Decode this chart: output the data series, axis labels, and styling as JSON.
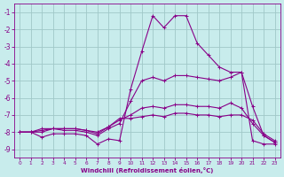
{
  "xlabel": "Windchill (Refroidissement éolien,°C)",
  "xlim": [
    -0.5,
    23.5
  ],
  "ylim": [
    -9.5,
    -0.5
  ],
  "yticks": [
    -9,
    -8,
    -7,
    -6,
    -5,
    -4,
    -3,
    -2,
    -1
  ],
  "xticks": [
    0,
    1,
    2,
    3,
    4,
    5,
    6,
    7,
    8,
    9,
    10,
    11,
    12,
    13,
    14,
    15,
    16,
    17,
    18,
    19,
    20,
    21,
    22,
    23
  ],
  "bg_color": "#c8ecec",
  "grid_color": "#a0c8c8",
  "line_color": "#880088",
  "lines": [
    [
      -8.0,
      -8.0,
      -8.3,
      -8.1,
      -8.1,
      -8.1,
      -8.2,
      -8.7,
      -8.4,
      -8.5,
      -5.5,
      -3.3,
      -1.2,
      -1.9,
      -1.2,
      -1.2,
      -2.8,
      -3.5,
      -4.2,
      -4.5,
      -4.5,
      -8.5,
      -8.7,
      -8.7
    ],
    [
      -8.0,
      -8.0,
      -8.0,
      -7.8,
      -7.9,
      -7.9,
      -8.0,
      -8.2,
      -7.8,
      -7.5,
      -6.2,
      -5.0,
      -4.8,
      -5.0,
      -4.7,
      -4.7,
      -4.8,
      -4.9,
      -5.0,
      -4.8,
      -4.5,
      -6.5,
      -8.2,
      -8.6
    ],
    [
      -8.0,
      -8.0,
      -7.9,
      -7.8,
      -7.8,
      -7.8,
      -7.9,
      -8.1,
      -7.7,
      -7.3,
      -7.0,
      -6.6,
      -6.5,
      -6.6,
      -6.4,
      -6.4,
      -6.5,
      -6.5,
      -6.6,
      -6.3,
      -6.6,
      -7.5,
      -8.2,
      -8.6
    ],
    [
      -8.0,
      -8.0,
      -7.8,
      -7.8,
      -7.8,
      -7.8,
      -7.9,
      -8.0,
      -7.7,
      -7.2,
      -7.2,
      -7.1,
      -7.0,
      -7.1,
      -6.9,
      -6.9,
      -7.0,
      -7.0,
      -7.1,
      -7.0,
      -7.0,
      -7.3,
      -8.1,
      -8.5
    ]
  ]
}
